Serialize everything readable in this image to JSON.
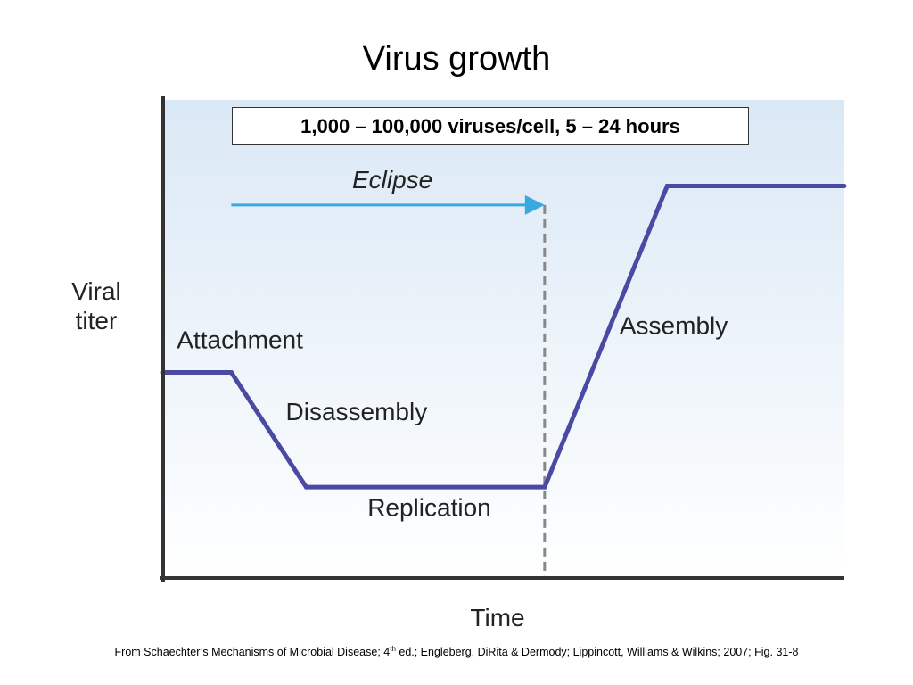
{
  "title": "Virus growth",
  "info_box": "1,000 – 100,000 viruses/cell, 5 – 24 hours",
  "citation": {
    "before": "From Schaechter’s Mechanisms of Microbial Disease; 4",
    "sup": "th",
    "after": " ed.; Engleberg, DiRita & Dermody; Lippincott, Williams & Wilkins; 2007; Fig.  31-8"
  },
  "chart_data": {
    "type": "line",
    "title": "Virus growth",
    "xlabel": "Time",
    "ylabel_lines": [
      "Viral",
      "titer"
    ],
    "xlim": [
      0,
      100
    ],
    "ylim": [
      0,
      100
    ],
    "grid": false,
    "legend": "none",
    "series": [
      {
        "points": [
          {
            "x": 0,
            "y": 43
          },
          {
            "x": 10,
            "y": 43
          },
          {
            "x": 21,
            "y": 19
          },
          {
            "x": 56,
            "y": 19
          },
          {
            "x": 74,
            "y": 82
          },
          {
            "x": 100,
            "y": 82
          }
        ],
        "color": "#4a4aa2"
      }
    ],
    "phase_labels": [
      {
        "text": "Attachment",
        "x": 2,
        "y": 48
      },
      {
        "text": "Disassembly",
        "x": 18,
        "y": 33
      },
      {
        "text": "Replication",
        "x": 30,
        "y": 13
      },
      {
        "text": "Assembly",
        "x": 67,
        "y": 51
      }
    ],
    "eclipse": {
      "label": "Eclipse",
      "x_start": 10,
      "x_end": 56,
      "y": 78,
      "color": "#3aa8e0"
    },
    "eclipse_end_marker": {
      "x": 56,
      "style": "dashed",
      "color": "#888888"
    },
    "colors": {
      "line": "#4a4aa2",
      "arrow": "#3aa8e0",
      "axis": "#333333",
      "background_top": "#dae8f5",
      "background_bottom": "#ffffff"
    }
  }
}
